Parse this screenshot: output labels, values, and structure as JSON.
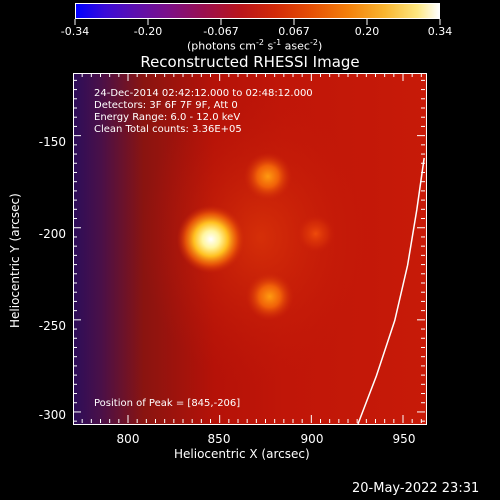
{
  "colorbar": {
    "tick_labels": [
      "-0.34",
      "-0.20",
      "-0.067",
      "0.067",
      "0.20",
      "0.34"
    ],
    "units": "(photons cm",
    "units_exp1": "-2",
    "units_mid": " s",
    "units_exp2": "-1",
    "units_end": " asec",
    "units_exp3": "-2",
    "units_close": ")"
  },
  "title": "Reconstructed RHESSI Image",
  "info": {
    "time_range": "24-Dec-2014 02:42:12.000 to 02:48:12.000",
    "detectors": "Detectors: 3F 6F 7F 9F, Att 0",
    "energy": "Energy Range: 6.0 - 12.0 keV",
    "clean": "Clean    Total counts: 3.36E+05",
    "peak": "Position of Peak = [845,-206]"
  },
  "chart_data": {
    "type": "heatmap",
    "title": "Reconstructed RHESSI Image",
    "xlabel": "Heliocentric X (arcsec)",
    "ylabel": "Heliocentric Y (arcsec)",
    "x_ticks": [
      "800",
      "850",
      "900",
      "950"
    ],
    "y_ticks": [
      "-150",
      "-200",
      "-250",
      "-300"
    ],
    "xlim": [
      770,
      962
    ],
    "ylim": [
      -306,
      -116
    ],
    "colorbar_range": [
      -0.34,
      0.34
    ],
    "sources": [
      {
        "x": 845,
        "y": -206,
        "intensity": 0.34
      },
      {
        "x": 876,
        "y": -172,
        "intensity": 0.2
      },
      {
        "x": 877,
        "y": -237,
        "intensity": 0.18
      },
      {
        "x": 902,
        "y": -203,
        "intensity": 0.1
      }
    ],
    "limb_curve": [
      [
        925,
        -306
      ],
      [
        935,
        -280
      ],
      [
        945,
        -250
      ],
      [
        952,
        -220
      ],
      [
        957,
        -190
      ],
      [
        961,
        -162
      ]
    ]
  },
  "footer": {
    "date": "20-May-2022 23:31"
  }
}
